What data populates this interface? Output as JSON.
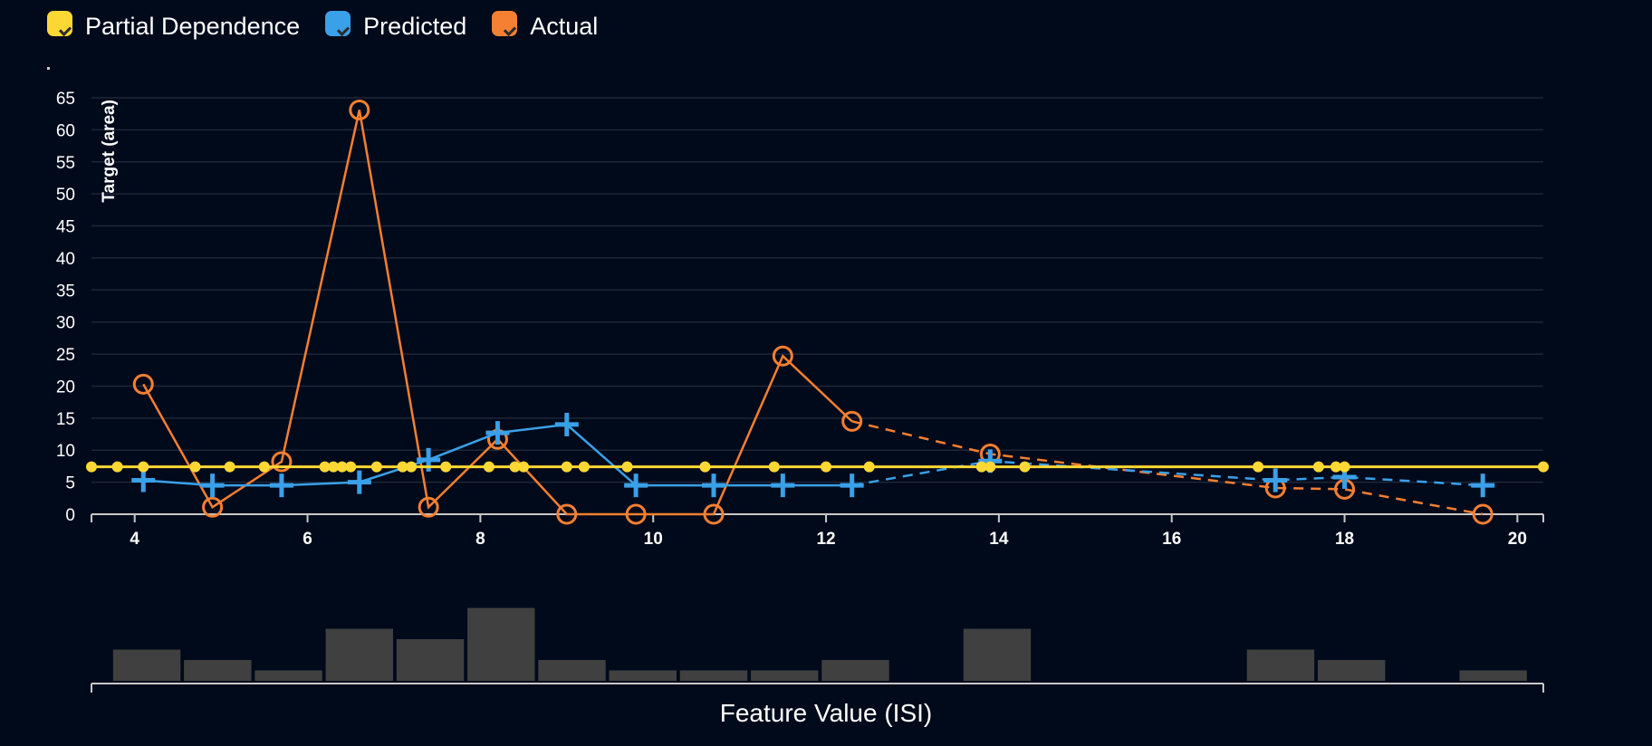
{
  "legend": {
    "items": [
      {
        "label": "Partial Dependence",
        "color": "#fdd835"
      },
      {
        "label": "Predicted",
        "color": "#3aa0e8"
      },
      {
        "label": "Actual",
        "color": "#f57f32"
      }
    ]
  },
  "chart_data": {
    "type": "line",
    "ylabel": "Target (area)",
    "xlabel": "Feature Value (ISI)",
    "xlim": [
      3.5,
      20.3
    ],
    "ylim": [
      0,
      65
    ],
    "x_ticks": [
      4,
      6,
      8,
      10,
      12,
      14,
      16,
      18,
      20
    ],
    "y_ticks": [
      0,
      5,
      10,
      15,
      20,
      25,
      30,
      35,
      40,
      45,
      50,
      55,
      60,
      65
    ],
    "grid": true,
    "legend_position": "top-left",
    "series": [
      {
        "name": "Partial Dependence",
        "color": "#fdd835",
        "marker": "dot",
        "line_y": 7.4,
        "x": [
          3.5,
          3.8,
          4.1,
          4.7,
          5.1,
          5.5,
          6.2,
          6.3,
          6.4,
          6.5,
          6.8,
          7.1,
          7.2,
          7.6,
          8.1,
          8.4,
          8.5,
          9.0,
          9.2,
          9.7,
          10.6,
          11.4,
          12.0,
          12.5,
          13.8,
          13.9,
          14.3,
          17.0,
          17.7,
          17.9,
          18.0,
          20.3
        ],
        "y": [
          7.4,
          7.4,
          7.4,
          7.4,
          7.4,
          7.4,
          7.4,
          7.4,
          7.4,
          7.4,
          7.4,
          7.4,
          7.4,
          7.4,
          7.4,
          7.4,
          7.4,
          7.4,
          7.4,
          7.4,
          7.4,
          7.4,
          7.4,
          7.4,
          7.4,
          7.4,
          7.4,
          7.4,
          7.4,
          7.4,
          7.4,
          7.4
        ]
      },
      {
        "name": "Predicted",
        "color": "#3aa0e8",
        "marker": "plus",
        "x": [
          4.1,
          4.9,
          5.7,
          6.6,
          7.4,
          8.2,
          9.0,
          9.8,
          10.7,
          11.5,
          12.3,
          13.9,
          17.2,
          18.0,
          19.6
        ],
        "y": [
          5.3,
          4.5,
          4.5,
          5.0,
          8.5,
          12.7,
          14.0,
          4.5,
          4.5,
          4.5,
          4.5,
          8.3,
          5.3,
          5.8,
          4.5
        ],
        "dashed_from_index": 10
      },
      {
        "name": "Actual",
        "color": "#f57f32",
        "marker": "circle",
        "x": [
          4.1,
          4.9,
          5.7,
          6.6,
          7.4,
          8.2,
          9.0,
          9.8,
          10.7,
          11.5,
          12.3,
          13.9,
          17.2,
          18.0,
          19.6
        ],
        "y": [
          20.3,
          1.1,
          8.2,
          63.1,
          1.1,
          11.7,
          0.0,
          0.0,
          0.0,
          24.7,
          14.5,
          9.4,
          4.1,
          3.9,
          0.0
        ],
        "dashed_from_index": 10
      }
    ],
    "histogram": {
      "color": "#404040",
      "bins": [
        {
          "x0": 3.75,
          "x1": 4.53,
          "count": 3
        },
        {
          "x0": 4.57,
          "x1": 5.35,
          "count": 2
        },
        {
          "x0": 5.39,
          "x1": 6.17,
          "count": 1
        },
        {
          "x0": 6.21,
          "x1": 6.99,
          "count": 5
        },
        {
          "x0": 7.03,
          "x1": 7.81,
          "count": 4
        },
        {
          "x0": 7.85,
          "x1": 8.63,
          "count": 7
        },
        {
          "x0": 8.67,
          "x1": 9.45,
          "count": 2
        },
        {
          "x0": 9.49,
          "x1": 10.27,
          "count": 1
        },
        {
          "x0": 10.31,
          "x1": 11.09,
          "count": 1
        },
        {
          "x0": 11.13,
          "x1": 11.91,
          "count": 1
        },
        {
          "x0": 11.95,
          "x1": 12.73,
          "count": 2
        },
        {
          "x0": 13.59,
          "x1": 14.37,
          "count": 5
        },
        {
          "x0": 16.87,
          "x1": 17.65,
          "count": 3
        },
        {
          "x0": 17.69,
          "x1": 18.47,
          "count": 2
        },
        {
          "x0": 19.33,
          "x1": 20.11,
          "count": 1
        }
      ]
    }
  }
}
